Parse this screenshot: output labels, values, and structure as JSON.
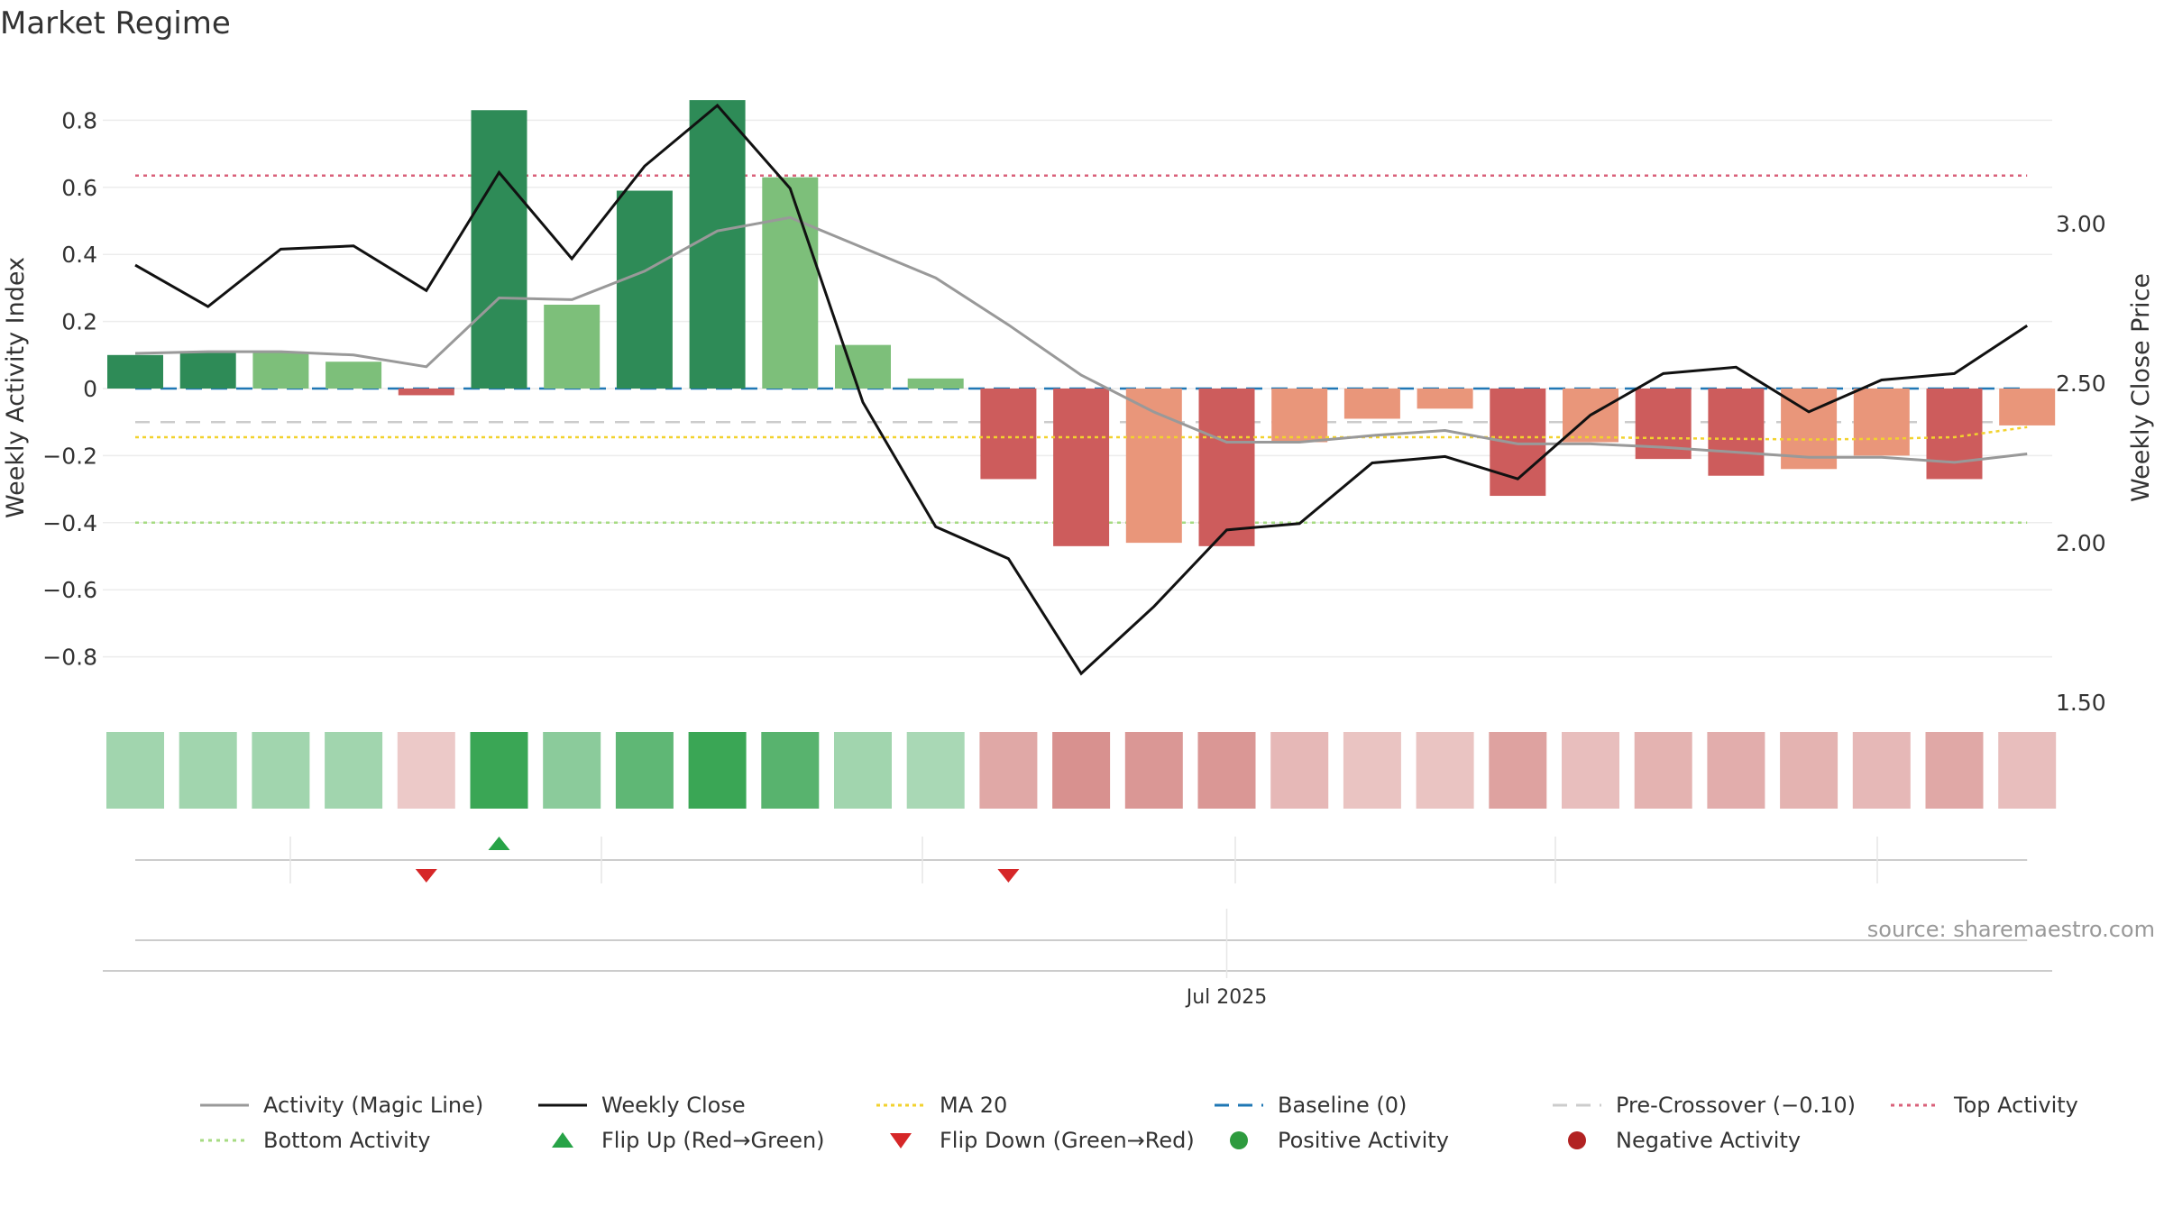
{
  "chart_data": {
    "type": "bar",
    "title": "Market Regime",
    "ylabel": "Weekly Activity Index",
    "y2label": "Weekly Close Price",
    "ylim": [
      -0.93,
      0.95
    ],
    "y2lim": [
      1.5,
      3.1
    ],
    "yticks": [
      0.8,
      0.6,
      0.4,
      0.2,
      0,
      -0.2,
      -0.4,
      -0.6,
      -0.8
    ],
    "ytick_labels": [
      "0.8",
      "0.6",
      "0.4",
      "0.2",
      "0",
      "−0.2",
      "−0.4",
      "−0.6",
      "−0.8"
    ],
    "y2ticks": [
      3.0,
      2.5,
      2.0,
      1.5
    ],
    "y2tick_labels": [
      "3.00",
      "2.50",
      "2.00",
      "1.50"
    ],
    "x_tick_label": "Jul 2025",
    "source": "source: sharemaestro.com",
    "grid": true,
    "legend_position": "bottom",
    "activity": [
      0.1,
      0.11,
      0.11,
      0.08,
      -0.02,
      0.83,
      0.25,
      0.59,
      0.86,
      0.63,
      0.13,
      0.03,
      -0.27,
      -0.47,
      -0.46,
      -0.47,
      -0.16,
      -0.09,
      -0.06,
      -0.32,
      -0.16,
      -0.21,
      -0.26,
      -0.24,
      -0.2,
      -0.27,
      -0.11
    ],
    "bar_shade": [
      "dark",
      "dark",
      "light",
      "light",
      "dark",
      "dark",
      "light",
      "dark",
      "dark",
      "light",
      "light",
      "light",
      "dark",
      "dark",
      "light",
      "dark",
      "light",
      "light",
      "light",
      "dark",
      "light",
      "dark",
      "dark",
      "light",
      "light",
      "dark",
      "light"
    ],
    "magic_line": [
      0.105,
      0.11,
      0.11,
      0.1,
      0.065,
      0.27,
      0.265,
      0.35,
      0.47,
      0.51,
      0.42,
      0.33,
      0.19,
      0.04,
      -0.07,
      -0.16,
      -0.16,
      -0.14,
      -0.125,
      -0.165,
      -0.165,
      -0.175,
      -0.19,
      -0.205,
      -0.205,
      -0.22,
      -0.195
    ],
    "weekly_close": [
      2.87,
      2.74,
      2.92,
      2.93,
      2.79,
      3.16,
      2.89,
      3.18,
      3.37,
      3.11,
      2.44,
      2.05,
      1.95,
      1.59,
      1.8,
      2.04,
      2.06,
      2.25,
      2.27,
      2.2,
      2.4,
      2.53,
      2.55,
      2.41,
      2.51,
      2.53,
      2.68
    ],
    "ma20": [
      -0.145,
      -0.145,
      -0.145,
      -0.145,
      -0.145,
      -0.145,
      -0.145,
      -0.145,
      -0.145,
      -0.145,
      -0.145,
      -0.145,
      -0.145,
      -0.145,
      -0.145,
      -0.145,
      -0.145,
      -0.145,
      -0.145,
      -0.145,
      -0.145,
      -0.148,
      -0.15,
      -0.152,
      -0.15,
      -0.145,
      -0.115
    ],
    "baseline": 0,
    "pre_crossover": -0.1,
    "top_activity": 0.635,
    "bottom_activity": -0.4,
    "heat_strip": [
      0.3,
      0.3,
      0.3,
      0.3,
      -0.15,
      1.0,
      0.45,
      0.75,
      1.0,
      0.8,
      0.3,
      0.25,
      -0.45,
      -0.65,
      -0.6,
      -0.6,
      -0.3,
      -0.2,
      -0.2,
      -0.5,
      -0.25,
      -0.35,
      -0.4,
      -0.35,
      -0.3,
      -0.45,
      -0.25
    ],
    "flip_up_index": [
      5
    ],
    "flip_down_index": [
      4,
      12
    ],
    "x_tick_index": 15,
    "legend": [
      {
        "label": "Activity (Magic Line)",
        "style": "solid-gray"
      },
      {
        "label": "Weekly Close",
        "style": "solid-black"
      },
      {
        "label": "MA 20",
        "style": "dotted-yellow"
      },
      {
        "label": "Baseline (0)",
        "style": "dashed-blue"
      },
      {
        "label": "Pre-Crossover (−0.10)",
        "style": "dashed-lightgray"
      },
      {
        "label": "Top Activity",
        "style": "dotted-red"
      },
      {
        "label": "Bottom Activity",
        "style": "dotted-green"
      },
      {
        "label": "Flip Up (Red→Green)",
        "style": "triangle-up"
      },
      {
        "label": "Flip Down (Green→Red)",
        "style": "triangle-down"
      },
      {
        "label": "Positive Activity",
        "style": "dot-green"
      },
      {
        "label": "Negative Activity",
        "style": "dot-red"
      }
    ],
    "colors": {
      "pos_dark": "#2e8b57",
      "pos_light": "#7dbf7a",
      "neg_dark": "#cd5c5c",
      "neg_light": "#e9967a",
      "magic_line": "#999999",
      "close": "#111111",
      "ma20": "#f2d22e",
      "baseline": "#1f77b4",
      "pre_crossover": "#cccccc",
      "top": "#d9607a",
      "bottom": "#a6db82",
      "flip_up": "#27a347",
      "flip_down": "#d62728",
      "positive_dot": "#2e9b3e",
      "negative_dot": "#b22222"
    }
  }
}
